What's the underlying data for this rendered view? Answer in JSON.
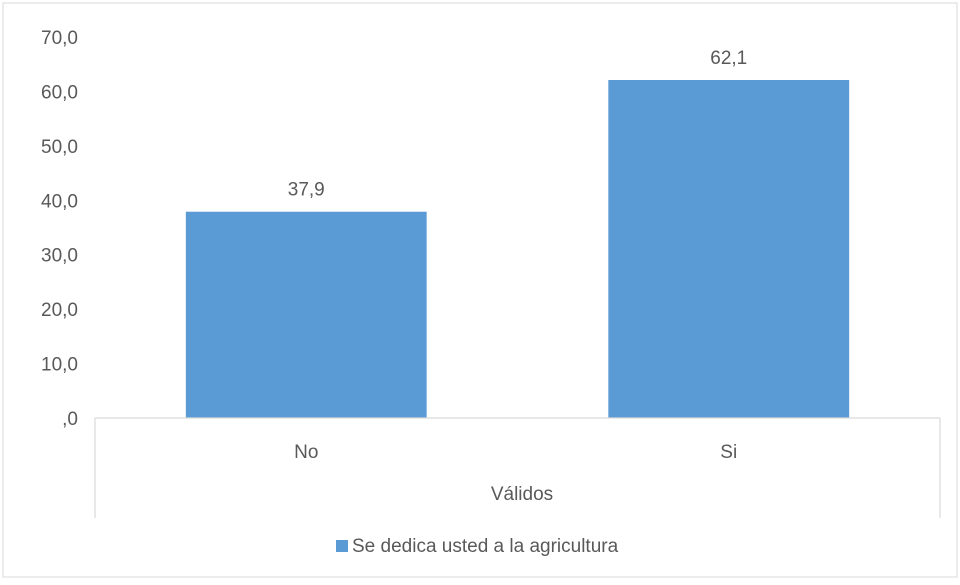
{
  "chart_data": {
    "type": "bar",
    "categories": [
      "No",
      "Si"
    ],
    "values": [
      37.9,
      62.1
    ],
    "value_labels": [
      "37,9",
      "62,1"
    ],
    "ylim": [
      0,
      70
    ],
    "yticks": [
      0,
      10,
      20,
      30,
      40,
      50,
      60,
      70
    ],
    "ytick_labels": [
      ",0",
      "10,0",
      "20,0",
      "30,0",
      "40,0",
      "50,0",
      "60,0",
      "70,0"
    ],
    "group_label": "Válidos",
    "legend": {
      "position": "bottom",
      "label": "Se dedica usted a la agricultura"
    },
    "grid": false,
    "colors": {
      "bar": "#5b9bd5",
      "text": "#595959",
      "axis": "#d9d9d9",
      "border": "#d9d9d9"
    }
  }
}
